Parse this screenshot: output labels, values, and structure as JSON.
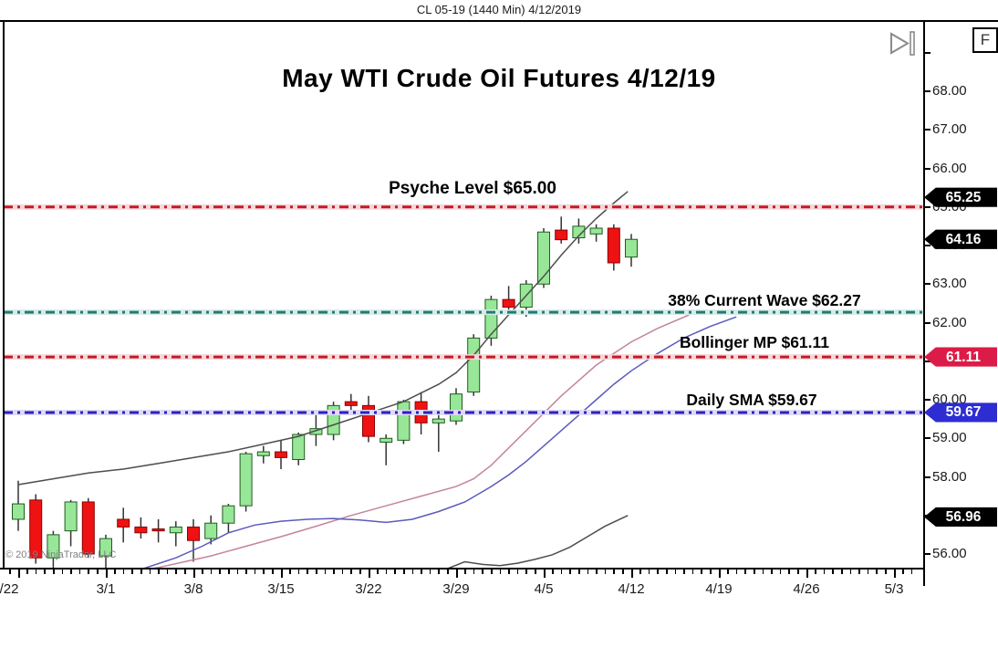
{
  "title_bar": {
    "text": "CL 05-19 (1440 Min)  4/12/2019"
  },
  "chart": {
    "title": "May WTI Crude Oil Futures 4/12/19",
    "watermark": "© 2019 NinjaTrader, LLC",
    "controls": {
      "go_to_end_icon": "play-to-end",
      "format_button_label": "F"
    }
  },
  "levels": [
    {
      "name": "psyche",
      "label": "Psyche Level $65.00",
      "price": 65.0,
      "color": "#c81828",
      "halo": "#f5d8da"
    },
    {
      "name": "wave38",
      "label": "38% Current Wave $62.27",
      "price": 62.27,
      "color": "#217c70",
      "halo": "#d6ebe8"
    },
    {
      "name": "bollinger_mp",
      "label": "Bollinger MP $61.11",
      "price": 61.11,
      "color": "#c81828",
      "halo": "#f5d8da"
    },
    {
      "name": "daily_sma",
      "label": "Daily SMA $59.67",
      "price": 59.67,
      "color": "#2d20c0",
      "halo": "#dedaf2"
    }
  ],
  "price_axis": {
    "ticks": [
      {
        "price": 69,
        "label": ""
      },
      {
        "price": 68,
        "label": "68.00"
      },
      {
        "price": 67,
        "label": "67.00"
      },
      {
        "price": 66,
        "label": "66.00"
      },
      {
        "price": 65,
        "label": "65.00"
      },
      {
        "price": 64,
        "label": "64.00"
      },
      {
        "price": 63,
        "label": "63.00"
      },
      {
        "price": 62,
        "label": "62.00"
      },
      {
        "price": 61,
        "label": "61.00"
      },
      {
        "price": 60,
        "label": "60.00"
      },
      {
        "price": 59,
        "label": "59.00"
      },
      {
        "price": 58,
        "label": "58.00"
      },
      {
        "price": 57,
        "label": "57.00"
      },
      {
        "price": 56,
        "label": "56.00"
      }
    ],
    "badges": [
      {
        "price": 65.25,
        "label": "65.25",
        "color": "#000000"
      },
      {
        "price": 64.16,
        "label": "64.16",
        "color": "#000000"
      },
      {
        "price": 61.11,
        "label": "61.11",
        "color": "#dc1c48"
      },
      {
        "price": 59.67,
        "label": "59.67",
        "color": "#2d2dd2"
      },
      {
        "price": 56.96,
        "label": "56.96",
        "color": "#000000"
      }
    ]
  },
  "time_axis": {
    "labels": [
      "/22",
      "3/1",
      "3/8",
      "3/15",
      "3/22",
      "3/29",
      "4/5",
      "4/12",
      "4/19",
      "4/26",
      "5/3"
    ]
  },
  "chart_data": {
    "type": "candlestick",
    "symbol": "CL 05-19",
    "interval": "1440 Min",
    "as_of": "4/12/2019",
    "title": "May WTI Crude Oil Futures 4/12/19",
    "ylim": [
      55.6,
      69.7
    ],
    "grid": false,
    "up_color": "#98e698",
    "down_color": "#ee1212",
    "candles": [
      {
        "date": "2/22",
        "o": 56.9,
        "h": 57.9,
        "l": 56.6,
        "c": 57.3
      },
      {
        "date": "2/25",
        "o": 57.4,
        "h": 57.55,
        "l": 55.75,
        "c": 55.9
      },
      {
        "date": "2/26",
        "o": 55.9,
        "h": 56.6,
        "l": 55.5,
        "c": 56.5
      },
      {
        "date": "2/27",
        "o": 56.6,
        "h": 57.4,
        "l": 56.2,
        "c": 57.35
      },
      {
        "date": "2/28",
        "o": 57.35,
        "h": 57.45,
        "l": 55.9,
        "c": 56.0
      },
      {
        "date": "3/1",
        "o": 55.95,
        "h": 56.5,
        "l": 55.6,
        "c": 56.4
      },
      {
        "date": "3/4",
        "o": 56.9,
        "h": 57.2,
        "l": 56.3,
        "c": 56.7
      },
      {
        "date": "3/5",
        "o": 56.7,
        "h": 56.95,
        "l": 56.4,
        "c": 56.55
      },
      {
        "date": "3/6",
        "o": 56.65,
        "h": 56.9,
        "l": 56.3,
        "c": 56.6
      },
      {
        "date": "3/7",
        "o": 56.55,
        "h": 56.85,
        "l": 56.2,
        "c": 56.7
      },
      {
        "date": "3/8",
        "o": 56.7,
        "h": 56.9,
        "l": 55.8,
        "c": 56.35
      },
      {
        "date": "3/11",
        "o": 56.4,
        "h": 57.0,
        "l": 56.25,
        "c": 56.8
      },
      {
        "date": "3/12",
        "o": 56.8,
        "h": 57.3,
        "l": 56.55,
        "c": 57.25
      },
      {
        "date": "3/13",
        "o": 57.25,
        "h": 58.65,
        "l": 57.1,
        "c": 58.6
      },
      {
        "date": "3/14",
        "o": 58.55,
        "h": 58.8,
        "l": 58.35,
        "c": 58.65
      },
      {
        "date": "3/15",
        "o": 58.65,
        "h": 58.95,
        "l": 58.2,
        "c": 58.5
      },
      {
        "date": "3/18",
        "o": 58.45,
        "h": 59.15,
        "l": 58.3,
        "c": 59.1
      },
      {
        "date": "3/19",
        "o": 59.1,
        "h": 59.6,
        "l": 58.8,
        "c": 59.25
      },
      {
        "date": "3/20",
        "o": 59.1,
        "h": 59.95,
        "l": 58.95,
        "c": 59.85
      },
      {
        "date": "3/21",
        "o": 59.95,
        "h": 60.15,
        "l": 59.6,
        "c": 59.85
      },
      {
        "date": "3/22",
        "o": 59.85,
        "h": 60.1,
        "l": 58.9,
        "c": 59.05
      },
      {
        "date": "3/25",
        "o": 58.9,
        "h": 59.1,
        "l": 58.3,
        "c": 59.0
      },
      {
        "date": "3/26",
        "o": 58.95,
        "h": 60.0,
        "l": 58.85,
        "c": 59.95
      },
      {
        "date": "3/27",
        "o": 59.95,
        "h": 60.2,
        "l": 59.1,
        "c": 59.4
      },
      {
        "date": "3/28",
        "o": 59.4,
        "h": 59.6,
        "l": 58.65,
        "c": 59.5
      },
      {
        "date": "3/29",
        "o": 59.45,
        "h": 60.3,
        "l": 59.35,
        "c": 60.15
      },
      {
        "date": "4/1",
        "o": 60.2,
        "h": 61.7,
        "l": 60.1,
        "c": 61.6
      },
      {
        "date": "4/2",
        "o": 61.6,
        "h": 62.7,
        "l": 61.4,
        "c": 62.6
      },
      {
        "date": "4/3",
        "o": 62.6,
        "h": 62.95,
        "l": 62.2,
        "c": 62.4
      },
      {
        "date": "4/4",
        "o": 62.4,
        "h": 63.1,
        "l": 62.15,
        "c": 63.0
      },
      {
        "date": "4/5",
        "o": 63.0,
        "h": 64.45,
        "l": 62.9,
        "c": 64.35
      },
      {
        "date": "4/8",
        "o": 64.4,
        "h": 64.75,
        "l": 64.05,
        "c": 64.15
      },
      {
        "date": "4/9",
        "o": 64.2,
        "h": 64.7,
        "l": 64.05,
        "c": 64.5
      },
      {
        "date": "4/10",
        "o": 64.3,
        "h": 64.55,
        "l": 64.1,
        "c": 64.45
      },
      {
        "date": "4/11",
        "o": 64.45,
        "h": 64.55,
        "l": 63.35,
        "c": 63.55
      },
      {
        "date": "4/12",
        "o": 63.7,
        "h": 64.3,
        "l": 63.45,
        "c": 64.16
      }
    ],
    "overlays": [
      {
        "name": "bollinger-upper-band",
        "color": "#4d4d4d",
        "points": [
          [
            0,
            57.8
          ],
          [
            2,
            57.95
          ],
          [
            4,
            58.1
          ],
          [
            6,
            58.2
          ],
          [
            8,
            58.35
          ],
          [
            10,
            58.5
          ],
          [
            12,
            58.65
          ],
          [
            14,
            58.85
          ],
          [
            16,
            59.05
          ],
          [
            18,
            59.35
          ],
          [
            20,
            59.65
          ],
          [
            22,
            59.95
          ],
          [
            24,
            60.4
          ],
          [
            25,
            60.7
          ],
          [
            26,
            61.15
          ],
          [
            27,
            61.7
          ],
          [
            28,
            62.2
          ],
          [
            29,
            62.7
          ],
          [
            30,
            63.2
          ],
          [
            31,
            63.75
          ],
          [
            32,
            64.25
          ],
          [
            33,
            64.7
          ],
          [
            34,
            65.1
          ],
          [
            34.8,
            65.4
          ]
        ]
      },
      {
        "name": "bollinger-lower-band",
        "color": "#4d4d4d",
        "points": [
          [
            24.5,
            55.62
          ],
          [
            25.5,
            55.8
          ],
          [
            26.5,
            55.73
          ],
          [
            27.5,
            55.7
          ],
          [
            28.5,
            55.76
          ],
          [
            29.5,
            55.86
          ],
          [
            30.5,
            55.98
          ],
          [
            31.5,
            56.18
          ],
          [
            32.5,
            56.45
          ],
          [
            33.5,
            56.72
          ],
          [
            34.8,
            57.0
          ]
        ]
      },
      {
        "name": "rose-moving-average",
        "color": "#c4849c",
        "points": [
          [
            0.3,
            55.25
          ],
          [
            2,
            55.3
          ],
          [
            4,
            55.4
          ],
          [
            6,
            55.5
          ],
          [
            8,
            55.65
          ],
          [
            9.5,
            55.8
          ],
          [
            11,
            55.95
          ],
          [
            13,
            56.2
          ],
          [
            15,
            56.45
          ],
          [
            17,
            56.72
          ],
          [
            19,
            57.0
          ],
          [
            21,
            57.25
          ],
          [
            23,
            57.5
          ],
          [
            25,
            57.75
          ],
          [
            26,
            57.95
          ],
          [
            27,
            58.3
          ],
          [
            28,
            58.75
          ],
          [
            29,
            59.2
          ],
          [
            30,
            59.65
          ],
          [
            31,
            60.1
          ],
          [
            32,
            60.5
          ],
          [
            33,
            60.9
          ],
          [
            34,
            61.2
          ],
          [
            35,
            61.5
          ],
          [
            36.5,
            61.85
          ],
          [
            38.3,
            62.2
          ]
        ]
      },
      {
        "name": "blue-moving-average",
        "color": "#5a5abc",
        "points": [
          [
            3.5,
            55.15
          ],
          [
            5,
            55.35
          ],
          [
            7,
            55.6
          ],
          [
            9,
            55.9
          ],
          [
            10.5,
            56.2
          ],
          [
            12,
            56.55
          ],
          [
            13.5,
            56.75
          ],
          [
            15,
            56.85
          ],
          [
            16.5,
            56.9
          ],
          [
            18,
            56.92
          ],
          [
            19.5,
            56.88
          ],
          [
            21,
            56.82
          ],
          [
            22.5,
            56.9
          ],
          [
            24,
            57.1
          ],
          [
            25.5,
            57.35
          ],
          [
            27,
            57.75
          ],
          [
            28,
            58.05
          ],
          [
            29,
            58.4
          ],
          [
            30,
            58.8
          ],
          [
            31,
            59.2
          ],
          [
            32,
            59.6
          ],
          [
            33,
            60.0
          ],
          [
            34,
            60.4
          ],
          [
            35,
            60.75
          ],
          [
            36.5,
            61.2
          ],
          [
            38,
            61.6
          ],
          [
            39.5,
            61.9
          ],
          [
            41,
            62.15
          ]
        ]
      }
    ],
    "horizontal_levels": [
      {
        "label": "Psyche Level $65.00",
        "price": 65.0
      },
      {
        "label": "38% Current Wave $62.27",
        "price": 62.27
      },
      {
        "label": "Bollinger MP $61.11",
        "price": 61.11
      },
      {
        "label": "Daily SMA $59.67",
        "price": 59.67
      }
    ]
  }
}
